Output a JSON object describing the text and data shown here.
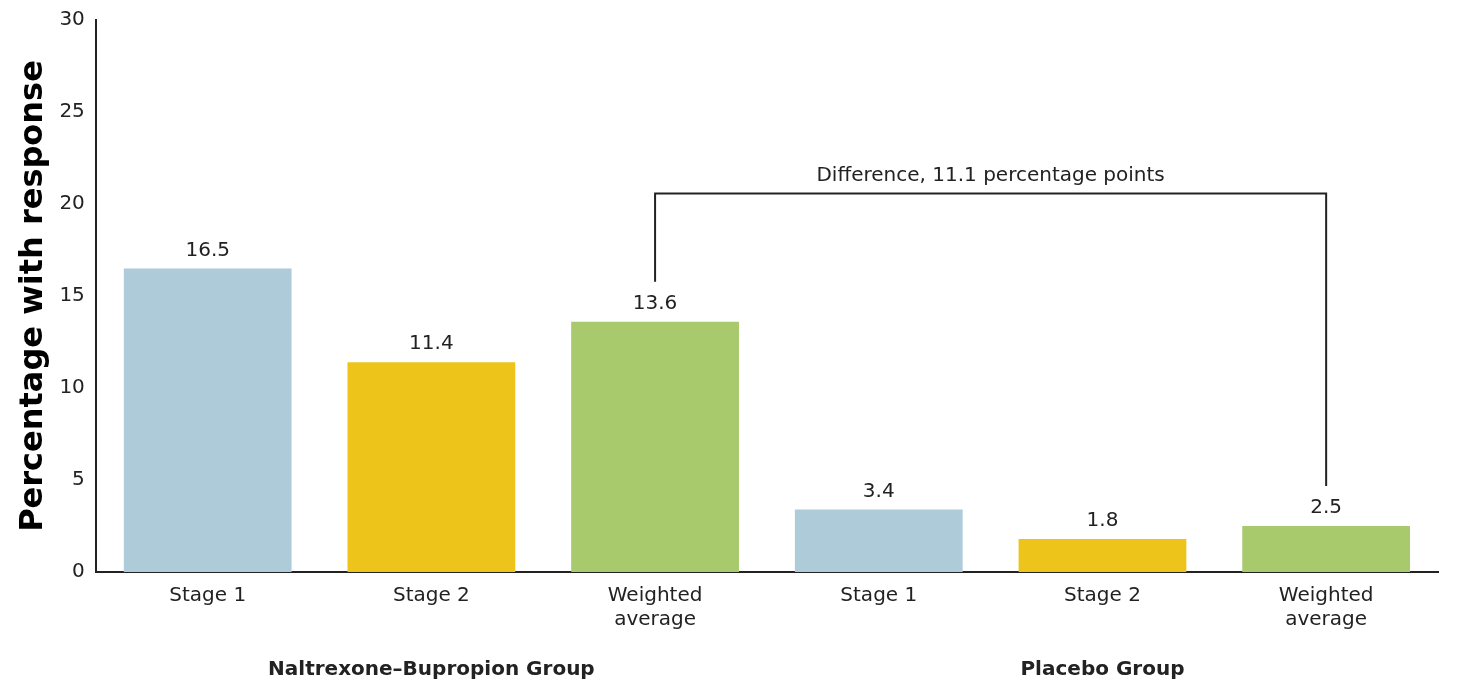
{
  "chart_data": {
    "type": "bar",
    "ylabel": "Percentage with response",
    "categories": [
      "Stage 1",
      "Stage 2",
      "Weighted average",
      "Stage 1",
      "Stage 2",
      "Weighted average"
    ],
    "values": [
      16.5,
      11.4,
      13.6,
      3.4,
      1.8,
      2.5
    ],
    "colors": [
      "#aecbd9",
      "#ecc41a",
      "#a8c96c",
      "#aecbd9",
      "#ecc41a",
      "#a8c96c"
    ],
    "ylim": [
      0,
      30
    ],
    "yticks": [
      0,
      5,
      10,
      15,
      20,
      25,
      30
    ],
    "grid": false,
    "legend": false,
    "data_labels": true,
    "annotations": [
      "Difference, 11.1 percentage points",
      "Naltrexone–Bupropion Group",
      "Placebo Group"
    ]
  }
}
